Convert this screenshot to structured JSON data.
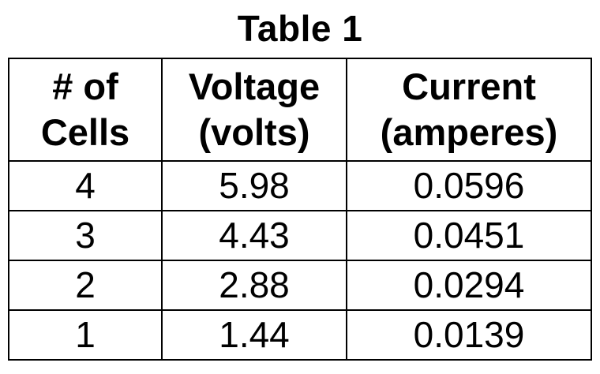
{
  "title": "Table 1",
  "table": {
    "headers": [
      {
        "line1": "# of",
        "line2": "Cells"
      },
      {
        "line1": "Voltage",
        "line2": "(volts)"
      },
      {
        "line1": "Current",
        "line2": "(amperes)"
      }
    ],
    "rows": [
      {
        "cells": "4",
        "voltage": "5.98",
        "current": "0.0596"
      },
      {
        "cells": "3",
        "voltage": "4.43",
        "current": "0.0451"
      },
      {
        "cells": "2",
        "voltage": "2.88",
        "current": "0.0294"
      },
      {
        "cells": "1",
        "voltage": "1.44",
        "current": "0.0139"
      }
    ]
  },
  "chart_data": {
    "type": "table",
    "title": "Table 1",
    "columns": [
      "# of Cells",
      "Voltage (volts)",
      "Current (amperes)"
    ],
    "rows": [
      [
        4,
        5.98,
        0.0596
      ],
      [
        3,
        4.43,
        0.0451
      ],
      [
        2,
        2.88,
        0.0294
      ],
      [
        1,
        1.44,
        0.0139
      ]
    ]
  }
}
